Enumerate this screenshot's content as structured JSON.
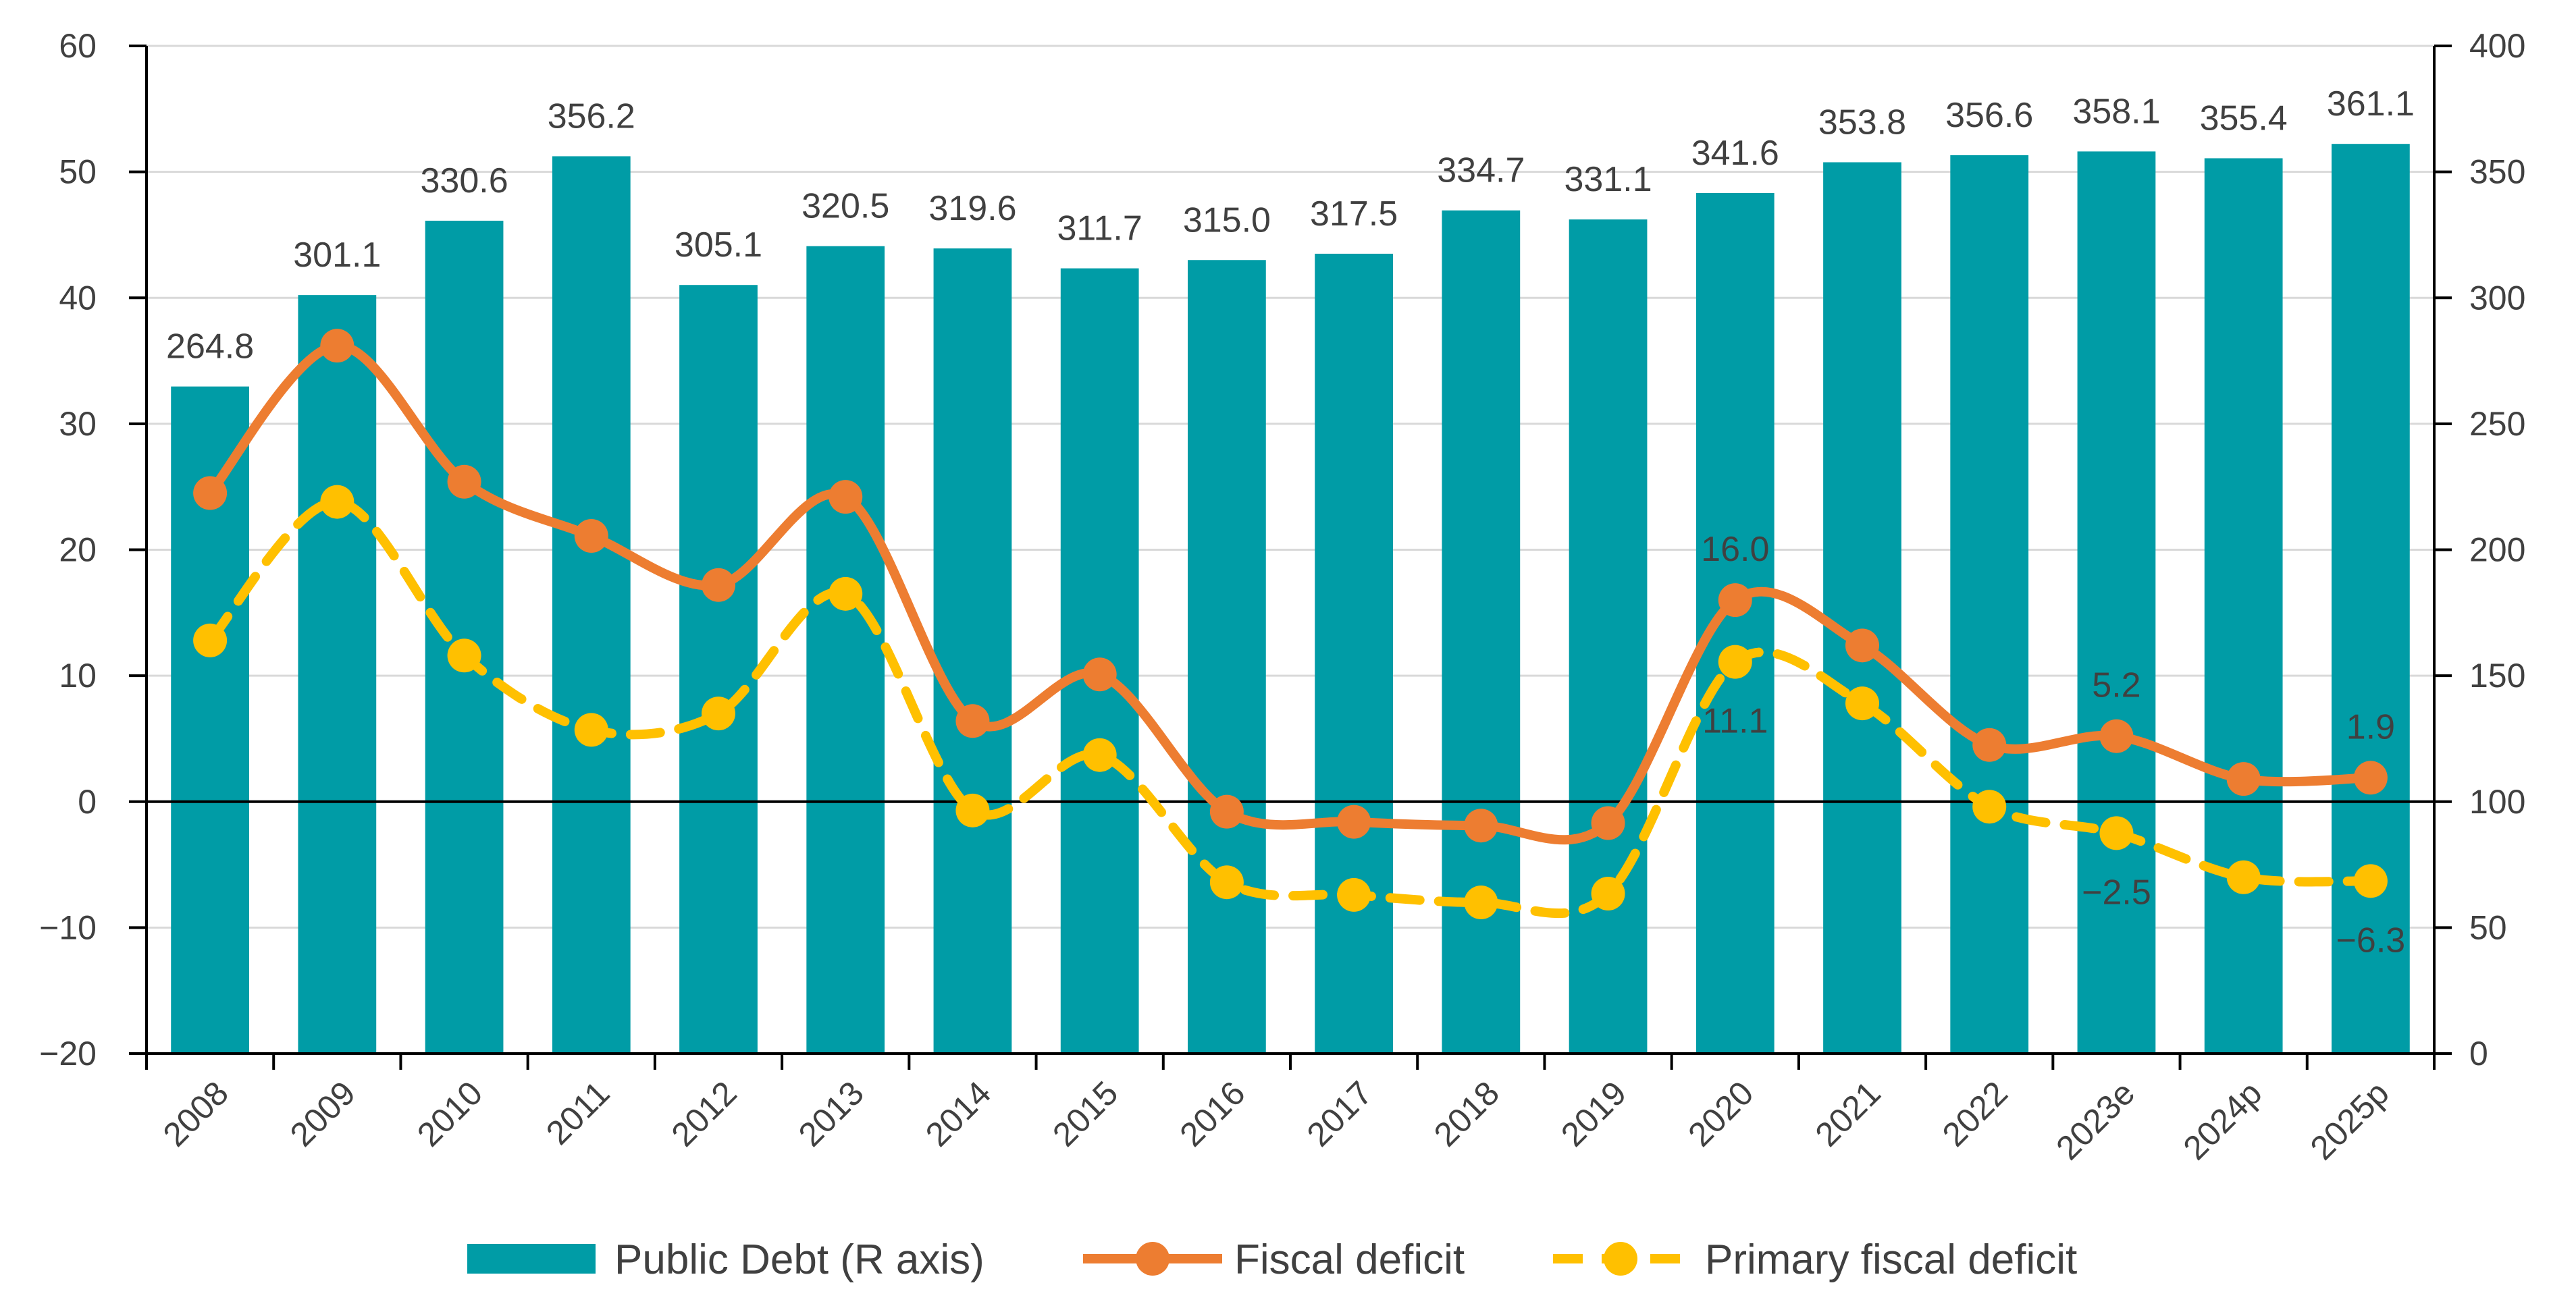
{
  "chart_data": {
    "type": "bar+line",
    "categories": [
      "2008",
      "2009",
      "2010",
      "2011",
      "2012",
      "2013",
      "2014",
      "2015",
      "2016",
      "2017",
      "2018",
      "2019",
      "2020",
      "2021",
      "2022",
      "2023e",
      "2024p",
      "2025p"
    ],
    "left_axis": {
      "min": -20,
      "max": 60,
      "step": 10,
      "ticks": [
        "−20",
        "−10",
        "0",
        "10",
        "20",
        "30",
        "40",
        "50",
        "60"
      ]
    },
    "right_axis": {
      "min": 0,
      "max": 400,
      "step": 50,
      "ticks": [
        "0",
        "50",
        "100",
        "150",
        "200",
        "250",
        "300",
        "350",
        "400"
      ]
    },
    "series": [
      {
        "name": "Public Debt (R axis)",
        "kind": "bar",
        "axis": "right",
        "color": "#009ca6",
        "values": [
          264.8,
          301.1,
          330.6,
          356.2,
          305.1,
          320.5,
          319.6,
          311.7,
          315.0,
          317.5,
          334.7,
          331.1,
          341.6,
          353.8,
          356.6,
          358.1,
          355.4,
          361.1
        ],
        "labels": [
          "264.8",
          "301.1",
          "330.6",
          "356.2",
          "305.1",
          "320.5",
          "319.6",
          "311.7",
          "315.0",
          "317.5",
          "334.7",
          "331.1",
          "341.6",
          "353.8",
          "356.6",
          "358.1",
          "355.4",
          "361.1"
        ]
      },
      {
        "name": "Fiscal deficit",
        "kind": "line",
        "axis": "left",
        "color": "#ed7d31",
        "dashed": false,
        "values": [
          24.5,
          36.2,
          25.4,
          21.1,
          17.2,
          24.2,
          6.4,
          10.1,
          -0.8,
          -1.6,
          -1.9,
          -1.7,
          16.0,
          12.4,
          4.5,
          5.2,
          1.8,
          1.9
        ],
        "point_labels": [
          {
            "index": 12,
            "text": "16.0",
            "position": "above"
          },
          {
            "index": 15,
            "text": "5.2",
            "position": "above"
          },
          {
            "index": 17,
            "text": "1.9",
            "position": "above"
          }
        ]
      },
      {
        "name": "Primary fiscal deficit",
        "kind": "line",
        "axis": "left",
        "color": "#ffc000",
        "dashed": true,
        "values": [
          12.8,
          23.8,
          11.6,
          5.7,
          7.0,
          16.5,
          -0.7,
          3.7,
          -6.4,
          -7.4,
          -8.0,
          -7.3,
          11.1,
          7.8,
          -0.4,
          -2.5,
          -6.0,
          -6.3
        ],
        "point_labels": [
          {
            "index": 12,
            "text": "11.1",
            "position": "below"
          },
          {
            "index": 15,
            "text": "−2.5",
            "position": "below"
          },
          {
            "index": 17,
            "text": "−6.3",
            "position": "below"
          }
        ]
      }
    ],
    "legend": {
      "position": "bottom",
      "items": [
        {
          "label": "Public Debt (R axis)",
          "marker": "bar",
          "color": "#009ca6"
        },
        {
          "label": "Fiscal deficit",
          "marker": "line-solid",
          "color": "#ed7d31"
        },
        {
          "label": "Primary fiscal deficit",
          "marker": "line-dashed",
          "color": "#ffc000"
        }
      ]
    },
    "grid": "horizontal"
  }
}
